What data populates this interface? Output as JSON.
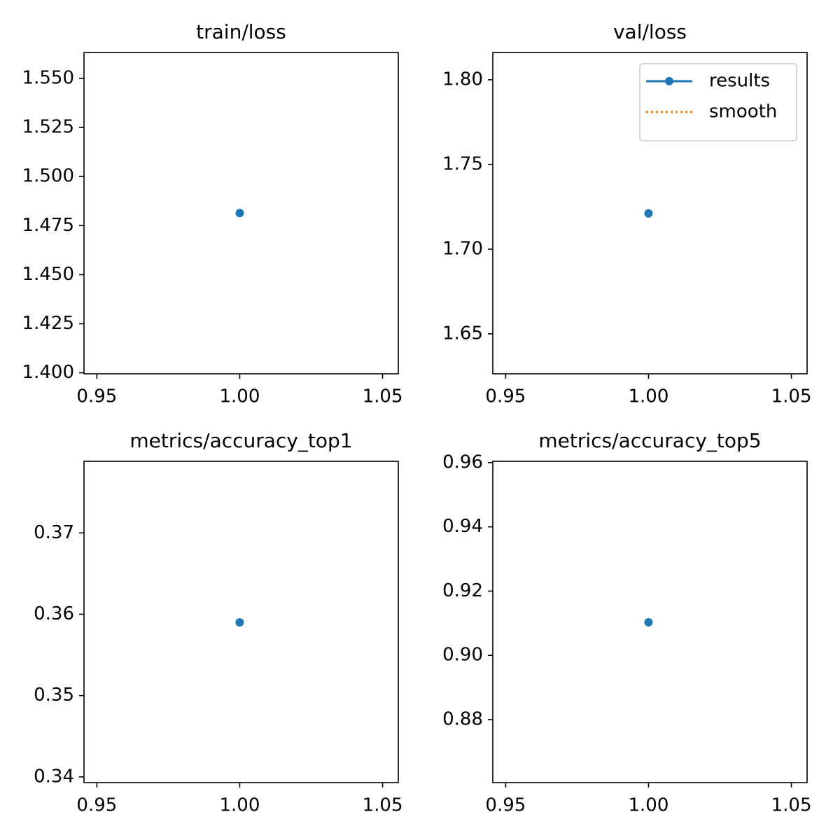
{
  "chart_data": [
    {
      "type": "line",
      "title": "train/loss",
      "x": [
        1
      ],
      "values": [
        1.4814
      ],
      "color": "#1f77b4",
      "xlim": [
        0.9455,
        1.0555
      ],
      "xticks": [
        0.95,
        {
          "value": 1,
          "label": "1.00"
        },
        1.05
      ],
      "ylim": [
        1.3995,
        1.5632
      ],
      "yticks": [
        {
          "value": 1.4,
          "label": "1.400"
        },
        {
          "value": 1.425,
          "label": "1.425"
        },
        {
          "value": 1.45,
          "label": "1.450"
        },
        {
          "value": 1.475,
          "label": "1.475"
        },
        {
          "value": 1.5,
          "label": "1.500"
        },
        {
          "value": 1.525,
          "label": "1.525"
        },
        {
          "value": 1.55,
          "label": "1.550"
        }
      ]
    },
    {
      "type": "line",
      "title": "val/loss",
      "x": [
        1
      ],
      "series": [
        {
          "name": "results",
          "color": "#1f77b4",
          "values": [
            1.7211
          ],
          "marker": true,
          "style": "solid"
        },
        {
          "name": "smooth",
          "color": "#ff7f0e",
          "values": [
            1.7211
          ],
          "marker": false,
          "style": "dotted"
        }
      ],
      "legend": "upper right",
      "xlim": [
        0.9455,
        1.0555
      ],
      "xticks": [
        0.95,
        {
          "value": 1,
          "label": "1.00"
        },
        1.05
      ],
      "ylim": [
        1.6264,
        1.8161
      ],
      "yticks": [
        1.65,
        {
          "value": 1.7,
          "label": "1.70"
        },
        1.75,
        {
          "value": 1.8,
          "label": "1.80"
        }
      ]
    },
    {
      "type": "line",
      "title": "metrics/accuracy_top1",
      "x": [
        1
      ],
      "values": [
        0.359
      ],
      "color": "#1f77b4",
      "xlim": [
        0.9455,
        1.0555
      ],
      "xticks": [
        0.95,
        {
          "value": 1,
          "label": "1.00"
        },
        1.05
      ],
      "ylim": [
        0.3393,
        0.3788
      ],
      "yticks": [
        0.34,
        0.35,
        0.36,
        0.37
      ]
    },
    {
      "type": "line",
      "title": "metrics/accuracy_top5",
      "x": [
        1
      ],
      "values": [
        0.9103
      ],
      "color": "#1f77b4",
      "xlim": [
        0.9455,
        1.0555
      ],
      "xticks": [
        0.95,
        {
          "value": 1,
          "label": "1.00"
        },
        1.05
      ],
      "ylim": [
        0.8604,
        0.9604
      ],
      "yticks": [
        0.88,
        {
          "value": 0.9,
          "label": "0.90"
        },
        0.92,
        0.94,
        0.96
      ]
    }
  ]
}
